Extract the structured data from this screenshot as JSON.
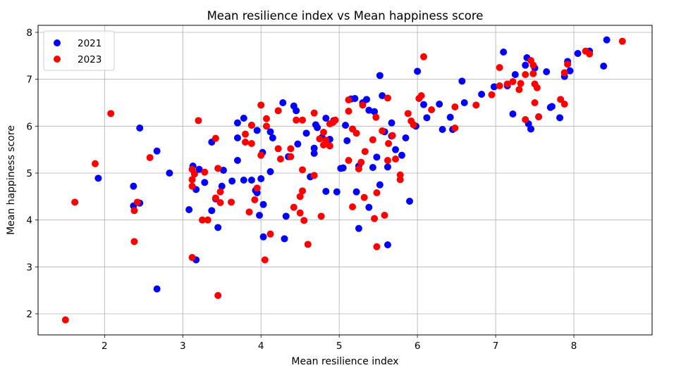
{
  "chart_data": {
    "type": "scatter",
    "title": "Mean resilience index vs Mean happiness score",
    "xlabel": "Mean resilience index",
    "ylabel": "Mean happiness score",
    "xlim": [
      1.15,
      9.0
    ],
    "ylim": [
      1.55,
      8.15
    ],
    "xticks": [
      2,
      3,
      4,
      5,
      6,
      7,
      8
    ],
    "yticks": [
      2,
      3,
      4,
      5,
      6,
      7,
      8
    ],
    "grid": true,
    "legend_position": "upper-left",
    "series": [
      {
        "name": "2021",
        "color": "#0000ff",
        "points": [
          [
            1.92,
            4.89
          ],
          [
            2.37,
            4.72
          ],
          [
            2.37,
            4.3
          ],
          [
            2.45,
            5.96
          ],
          [
            2.45,
            4.36
          ],
          [
            2.67,
            5.47
          ],
          [
            2.67,
            2.53
          ],
          [
            2.83,
            5.0
          ],
          [
            3.08,
            4.22
          ],
          [
            3.13,
            5.15
          ],
          [
            3.17,
            4.65
          ],
          [
            3.17,
            3.15
          ],
          [
            3.21,
            5.08
          ],
          [
            3.28,
            4.8
          ],
          [
            3.37,
            4.2
          ],
          [
            3.37,
            5.66
          ],
          [
            3.42,
            4.45
          ],
          [
            3.45,
            3.84
          ],
          [
            3.5,
            4.72
          ],
          [
            3.52,
            5.06
          ],
          [
            3.63,
            4.83
          ],
          [
            3.7,
            5.27
          ],
          [
            3.7,
            5.75
          ],
          [
            3.7,
            6.07
          ],
          [
            3.78,
            6.17
          ],
          [
            3.78,
            4.85
          ],
          [
            3.88,
            4.85
          ],
          [
            3.88,
            6.02
          ],
          [
            3.93,
            4.63
          ],
          [
            3.95,
            4.58
          ],
          [
            3.95,
            5.91
          ],
          [
            3.98,
            4.1
          ],
          [
            4.0,
            4.88
          ],
          [
            4.02,
            5.44
          ],
          [
            4.03,
            4.33
          ],
          [
            4.03,
            3.64
          ],
          [
            4.12,
            5.03
          ],
          [
            4.12,
            5.88
          ],
          [
            4.15,
            5.75
          ],
          [
            4.28,
            6.5
          ],
          [
            4.3,
            3.6
          ],
          [
            4.32,
            4.08
          ],
          [
            4.35,
            5.35
          ],
          [
            4.42,
            6.43
          ],
          [
            4.45,
            6.33
          ],
          [
            4.47,
            5.62
          ],
          [
            4.58,
            5.85
          ],
          [
            4.63,
            4.92
          ],
          [
            4.68,
            5.42
          ],
          [
            4.68,
            5.53
          ],
          [
            4.7,
            6.03
          ],
          [
            4.72,
            5.97
          ],
          [
            4.78,
            5.76
          ],
          [
            4.83,
            6.17
          ],
          [
            4.83,
            4.61
          ],
          [
            4.88,
            5.72
          ],
          [
            4.93,
            6.12
          ],
          [
            4.97,
            4.6
          ],
          [
            5.02,
            5.1
          ],
          [
            5.05,
            5.11
          ],
          [
            5.08,
            6.02
          ],
          [
            5.1,
            5.69
          ],
          [
            5.15,
            6.58
          ],
          [
            5.2,
            6.59
          ],
          [
            5.22,
            4.6
          ],
          [
            5.25,
            3.82
          ],
          [
            5.25,
            5.15
          ],
          [
            5.3,
            6.5
          ],
          [
            5.35,
            6.57
          ],
          [
            5.38,
            4.27
          ],
          [
            5.38,
            6.34
          ],
          [
            5.43,
            5.12
          ],
          [
            5.45,
            6.31
          ],
          [
            5.48,
            5.34
          ],
          [
            5.52,
            4.75
          ],
          [
            5.52,
            7.08
          ],
          [
            5.55,
            6.65
          ],
          [
            5.58,
            5.88
          ],
          [
            5.62,
            5.13
          ],
          [
            5.62,
            3.47
          ],
          [
            5.67,
            6.07
          ],
          [
            5.67,
            5.79
          ],
          [
            5.72,
            5.5
          ],
          [
            5.8,
            5.38
          ],
          [
            5.85,
            5.75
          ],
          [
            5.9,
            4.4
          ],
          [
            5.98,
            6.0
          ],
          [
            6.0,
            7.17
          ],
          [
            6.08,
            6.46
          ],
          [
            6.12,
            6.18
          ],
          [
            6.28,
            6.47
          ],
          [
            6.32,
            5.93
          ],
          [
            6.42,
            6.19
          ],
          [
            6.45,
            5.93
          ],
          [
            6.57,
            6.96
          ],
          [
            6.6,
            6.5
          ],
          [
            6.82,
            6.68
          ],
          [
            6.98,
            6.84
          ],
          [
            7.1,
            7.58
          ],
          [
            7.15,
            6.86
          ],
          [
            7.22,
            6.26
          ],
          [
            7.25,
            7.1
          ],
          [
            7.38,
            7.3
          ],
          [
            7.4,
            7.46
          ],
          [
            7.42,
            6.05
          ],
          [
            7.45,
            5.94
          ],
          [
            7.5,
            7.24
          ],
          [
            7.55,
            6.2
          ],
          [
            7.65,
            7.16
          ],
          [
            7.7,
            6.4
          ],
          [
            7.72,
            6.42
          ],
          [
            7.82,
            6.18
          ],
          [
            7.88,
            7.06
          ],
          [
            7.92,
            7.38
          ],
          [
            7.95,
            7.18
          ],
          [
            8.05,
            7.55
          ],
          [
            8.2,
            7.6
          ],
          [
            8.38,
            7.28
          ],
          [
            8.42,
            7.84
          ]
        ]
      },
      {
        "name": "2023",
        "color": "#ff0000",
        "points": [
          [
            1.5,
            1.87
          ],
          [
            1.62,
            4.38
          ],
          [
            1.88,
            5.2
          ],
          [
            2.08,
            6.27
          ],
          [
            2.38,
            4.2
          ],
          [
            2.38,
            3.54
          ],
          [
            2.42,
            4.38
          ],
          [
            2.58,
            5.33
          ],
          [
            3.12,
            5.08
          ],
          [
            3.12,
            4.86
          ],
          [
            3.12,
            4.72
          ],
          [
            3.12,
            3.2
          ],
          [
            3.15,
            4.98
          ],
          [
            3.2,
            6.12
          ],
          [
            3.25,
            4.0
          ],
          [
            3.28,
            5.02
          ],
          [
            3.32,
            4.0
          ],
          [
            3.42,
            5.74
          ],
          [
            3.42,
            4.47
          ],
          [
            3.45,
            2.39
          ],
          [
            3.45,
            5.1
          ],
          [
            3.48,
            4.6
          ],
          [
            3.48,
            4.37
          ],
          [
            3.62,
            4.38
          ],
          [
            3.8,
            5.83
          ],
          [
            3.8,
            5.66
          ],
          [
            3.85,
            4.17
          ],
          [
            3.88,
            5.63
          ],
          [
            3.88,
            6.02
          ],
          [
            3.92,
            4.43
          ],
          [
            3.95,
            4.68
          ],
          [
            4.0,
            5.38
          ],
          [
            4.0,
            6.45
          ],
          [
            4.05,
            3.15
          ],
          [
            4.07,
            6.16
          ],
          [
            4.07,
            6.0
          ],
          [
            4.12,
            3.7
          ],
          [
            4.22,
            5.52
          ],
          [
            4.22,
            6.33
          ],
          [
            4.25,
            5.3
          ],
          [
            4.38,
            5.52
          ],
          [
            4.38,
            5.35
          ],
          [
            4.42,
            4.27
          ],
          [
            4.45,
            6.13
          ],
          [
            4.5,
            4.15
          ],
          [
            4.5,
            4.5
          ],
          [
            4.53,
            4.62
          ],
          [
            4.53,
            5.07
          ],
          [
            4.53,
            6.13
          ],
          [
            4.55,
            3.99
          ],
          [
            4.6,
            3.48
          ],
          [
            4.68,
            6.28
          ],
          [
            4.68,
            4.95
          ],
          [
            4.75,
            5.73
          ],
          [
            4.77,
            4.08
          ],
          [
            4.8,
            5.6
          ],
          [
            4.8,
            5.87
          ],
          [
            4.83,
            5.7
          ],
          [
            4.88,
            5.58
          ],
          [
            4.88,
            6.05
          ],
          [
            4.92,
            6.08
          ],
          [
            4.95,
            6.13
          ],
          [
            5.12,
            6.32
          ],
          [
            5.12,
            5.27
          ],
          [
            5.12,
            6.56
          ],
          [
            5.17,
            4.28
          ],
          [
            5.17,
            5.94
          ],
          [
            5.22,
            5.85
          ],
          [
            5.25,
            5.09
          ],
          [
            5.28,
            5.23
          ],
          [
            5.3,
            6.45
          ],
          [
            5.32,
            4.48
          ],
          [
            5.33,
            5.46
          ],
          [
            5.43,
            5.71
          ],
          [
            5.45,
            4.03
          ],
          [
            5.47,
            6.19
          ],
          [
            5.48,
            4.58
          ],
          [
            5.48,
            3.43
          ],
          [
            5.55,
            5.9
          ],
          [
            5.58,
            4.1
          ],
          [
            5.62,
            5.27
          ],
          [
            5.62,
            6.6
          ],
          [
            5.63,
            5.63
          ],
          [
            5.68,
            5.8
          ],
          [
            5.72,
            5.3
          ],
          [
            5.78,
            4.86
          ],
          [
            5.78,
            4.96
          ],
          [
            5.88,
            6.27
          ],
          [
            5.92,
            6.11
          ],
          [
            5.95,
            6.03
          ],
          [
            6.02,
            6.59
          ],
          [
            6.05,
            6.65
          ],
          [
            6.08,
            7.48
          ],
          [
            6.18,
            6.35
          ],
          [
            6.48,
            6.41
          ],
          [
            6.48,
            5.96
          ],
          [
            6.75,
            6.45
          ],
          [
            6.95,
            6.67
          ],
          [
            7.05,
            7.25
          ],
          [
            7.05,
            6.86
          ],
          [
            7.15,
            6.9
          ],
          [
            7.22,
            6.95
          ],
          [
            7.3,
            6.78
          ],
          [
            7.32,
            6.91
          ],
          [
            7.38,
            7.1
          ],
          [
            7.38,
            6.14
          ],
          [
            7.45,
            7.4
          ],
          [
            7.48,
            7.12
          ],
          [
            7.48,
            7.3
          ],
          [
            7.5,
            6.5
          ],
          [
            7.5,
            6.9
          ],
          [
            7.53,
            6.82
          ],
          [
            7.55,
            6.2
          ],
          [
            7.83,
            6.57
          ],
          [
            7.88,
            6.47
          ],
          [
            7.88,
            7.14
          ],
          [
            7.92,
            7.32
          ],
          [
            8.15,
            7.6
          ],
          [
            8.2,
            7.54
          ],
          [
            8.62,
            7.81
          ]
        ]
      }
    ]
  }
}
